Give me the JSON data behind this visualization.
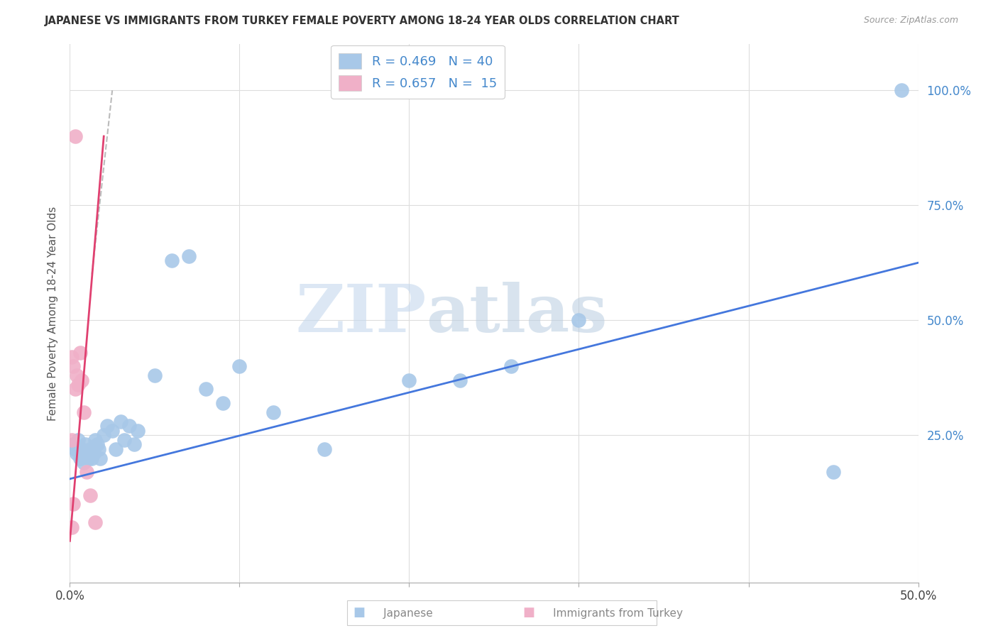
{
  "title": "JAPANESE VS IMMIGRANTS FROM TURKEY FEMALE POVERTY AMONG 18-24 YEAR OLDS CORRELATION CHART",
  "source": "Source: ZipAtlas.com",
  "ylabel": "Female Poverty Among 18-24 Year Olds",
  "watermark_zip": "ZIP",
  "watermark_atlas": "atlas",
  "xlim": [
    0.0,
    0.5
  ],
  "ylim": [
    -0.07,
    1.1
  ],
  "yticks_right": [
    0.25,
    0.5,
    0.75,
    1.0
  ],
  "ytick_labels_right": [
    "25.0%",
    "50.0%",
    "75.0%",
    "100.0%"
  ],
  "series1_color": "#a8c8e8",
  "series2_color": "#f0b0c8",
  "line1_color": "#4477dd",
  "line2_color": "#e04070",
  "dash_color": "#bbbbbb",
  "background_color": "#ffffff",
  "grid_color": "#dddddd",
  "japanese_x": [
    0.002,
    0.003,
    0.004,
    0.005,
    0.006,
    0.007,
    0.008,
    0.009,
    0.01,
    0.011,
    0.012,
    0.013,
    0.014,
    0.015,
    0.016,
    0.017,
    0.018,
    0.02,
    0.022,
    0.025,
    0.027,
    0.03,
    0.032,
    0.035,
    0.038,
    0.04,
    0.05,
    0.06,
    0.07,
    0.08,
    0.09,
    0.1,
    0.12,
    0.15,
    0.2,
    0.23,
    0.26,
    0.3,
    0.45,
    0.49
  ],
  "japanese_y": [
    0.23,
    0.22,
    0.21,
    0.24,
    0.2,
    0.22,
    0.19,
    0.23,
    0.21,
    0.2,
    0.22,
    0.2,
    0.21,
    0.24,
    0.23,
    0.22,
    0.2,
    0.25,
    0.27,
    0.26,
    0.22,
    0.28,
    0.24,
    0.27,
    0.23,
    0.26,
    0.38,
    0.63,
    0.64,
    0.35,
    0.32,
    0.4,
    0.3,
    0.22,
    0.37,
    0.37,
    0.4,
    0.5,
    0.17,
    1.0
  ],
  "turkey_x": [
    0.001,
    0.001,
    0.001,
    0.002,
    0.002,
    0.003,
    0.003,
    0.004,
    0.005,
    0.006,
    0.007,
    0.008,
    0.01,
    0.012,
    0.015
  ],
  "turkey_y": [
    0.05,
    0.24,
    0.42,
    0.1,
    0.4,
    0.35,
    0.9,
    0.38,
    0.36,
    0.43,
    0.37,
    0.3,
    0.17,
    0.12,
    0.06
  ],
  "blue_line_x": [
    0.0,
    0.5
  ],
  "blue_line_y": [
    0.155,
    0.625
  ],
  "pink_line_x": [
    0.0,
    0.02
  ],
  "pink_line_y": [
    0.02,
    0.9
  ],
  "dash_line_x": [
    0.013,
    0.025
  ],
  "dash_line_y": [
    0.6,
    1.0
  ]
}
